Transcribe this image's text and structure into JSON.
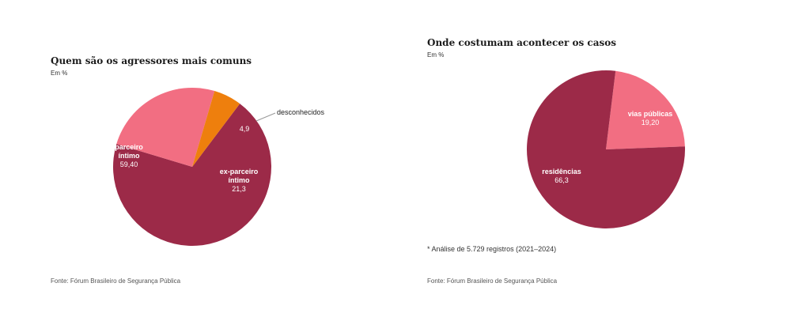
{
  "chart_data": [
    {
      "type": "pie",
      "title": "Quem são os agressores mais comuns",
      "subtitle": "Em %",
      "source": "Fonte: Fórum Brasileiro de Segurança Pública",
      "slices": [
        {
          "name": "parceiro íntimo",
          "name_lines": [
            "parceiro",
            "íntimo"
          ],
          "label": "59,40",
          "value": 59.4,
          "color": "#9c2a48",
          "label_color": "#ffffff"
        },
        {
          "name": "ex-parceiro íntimo",
          "name_lines": [
            "ex-parceiro",
            "íntimo"
          ],
          "label": "21,3",
          "value": 21.3,
          "color": "#f26e82",
          "label_color": "#ffffff"
        },
        {
          "name": "desconhecidos",
          "name_lines": [
            "desconhecidos"
          ],
          "label": "4,9",
          "value": 4.9,
          "color": "#ee7f0d",
          "label_color": "#ffffff",
          "name_color": "#222222"
        }
      ]
    },
    {
      "type": "pie",
      "title": "Onde costumam acontecer os casos",
      "subtitle": "Em %",
      "note": "* Análise de 5.729 registros (2021–2024)",
      "source": "Fonte: Fórum Brasileiro de Segurança Pública",
      "slices": [
        {
          "name": "residências",
          "name_lines": [
            "residências"
          ],
          "label": "66,3",
          "value": 66.3,
          "color": "#9c2a48",
          "label_color": "#ffffff"
        },
        {
          "name": "vias públicas",
          "name_lines": [
            "vias públicas"
          ],
          "label": "19,20",
          "value": 19.2,
          "color": "#f26e82",
          "label_color": "#ffffff"
        }
      ]
    }
  ]
}
